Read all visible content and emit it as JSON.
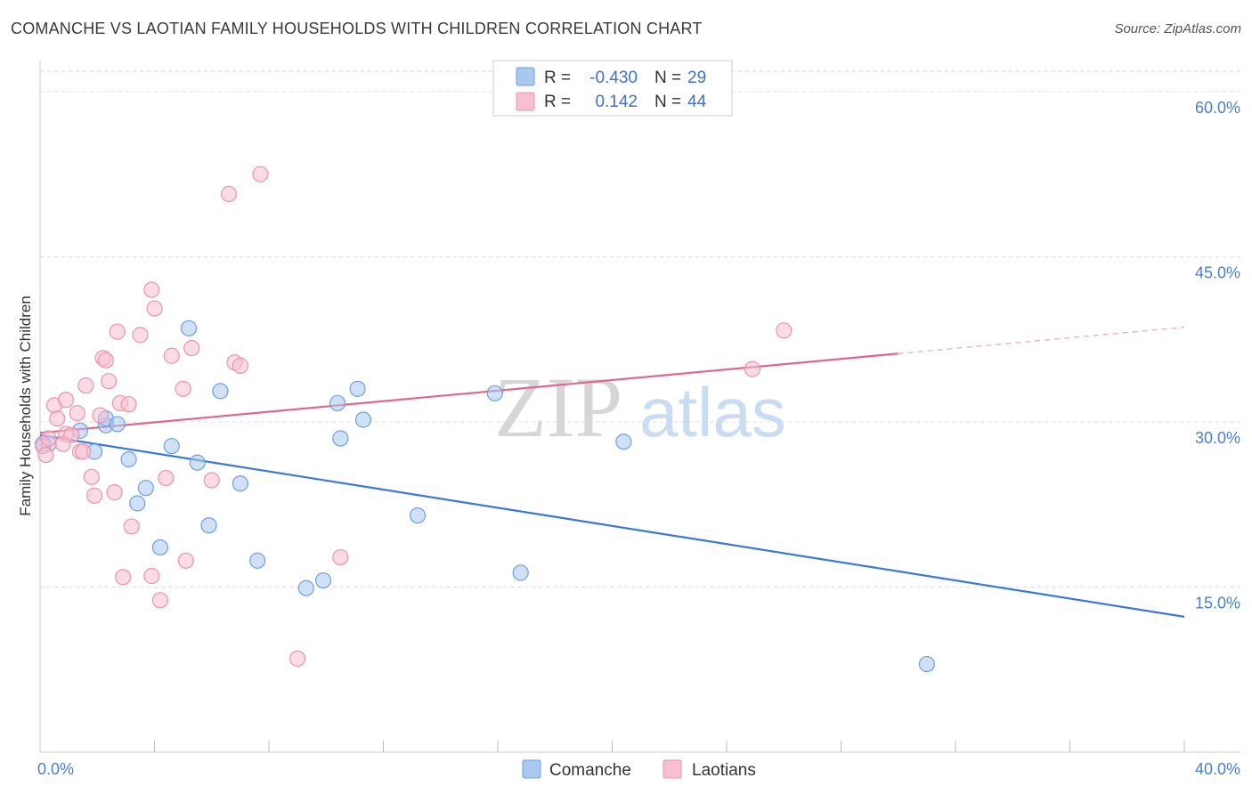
{
  "header": {
    "title": "COMANCHE VS LAOTIAN FAMILY HOUSEHOLDS WITH CHILDREN CORRELATION CHART",
    "source": "Source: ZipAtlas.com"
  },
  "watermark": {
    "part1": "ZIP",
    "part2": "atlas"
  },
  "colors": {
    "comanche_fill": "#a9c8f0",
    "comanche_stroke": "#6f9fde",
    "comanche_line": "#3a7ad4",
    "laotian_fill": "#f8bfd0",
    "laotian_stroke": "#ec93ae",
    "laotian_line": "#e0668e",
    "tick_label": "#4a7fd0",
    "grid": "#dddddd"
  },
  "stats_legend": {
    "r_label": "R =",
    "n_label": "N =",
    "rows": [
      {
        "series": "Comanche",
        "r": "-0.430",
        "n": "29"
      },
      {
        "series": "Laotians",
        "r": "0.142",
        "n": "44"
      }
    ]
  },
  "chart_data": {
    "type": "scatter",
    "title": "COMANCHE VS LAOTIAN FAMILY HOUSEHOLDS WITH CHILDREN CORRELATION CHART",
    "xlabel": "",
    "ylabel": "Family Households with Children",
    "xlim": [
      0,
      40
    ],
    "ylim": [
      0,
      62.5
    ],
    "x_tick_labels": [
      "0.0%",
      "40.0%"
    ],
    "y_ticks": [
      15,
      30,
      45,
      60
    ],
    "y_tick_labels": [
      "15.0%",
      "30.0%",
      "45.0%",
      "60.0%"
    ],
    "legend": [
      "Comanche",
      "Laotians"
    ],
    "series": [
      {
        "name": "Comanche",
        "points": [
          [
            0.3,
            28.0
          ],
          [
            1.4,
            29.2
          ],
          [
            1.9,
            27.3
          ],
          [
            2.3,
            29.7
          ],
          [
            2.3,
            30.3
          ],
          [
            2.7,
            29.8
          ],
          [
            3.1,
            26.6
          ],
          [
            3.4,
            22.6
          ],
          [
            3.7,
            24.0
          ],
          [
            4.2,
            18.6
          ],
          [
            4.6,
            27.8
          ],
          [
            5.2,
            38.5
          ],
          [
            5.5,
            26.3
          ],
          [
            5.9,
            20.6
          ],
          [
            6.3,
            32.8
          ],
          [
            7.0,
            24.4
          ],
          [
            7.6,
            17.4
          ],
          [
            9.3,
            14.9
          ],
          [
            9.9,
            15.6
          ],
          [
            10.4,
            31.7
          ],
          [
            10.5,
            28.5
          ],
          [
            11.1,
            33.0
          ],
          [
            11.3,
            30.2
          ],
          [
            13.2,
            21.5
          ],
          [
            15.9,
            32.6
          ],
          [
            16.8,
            16.3
          ],
          [
            20.4,
            28.2
          ],
          [
            31.0,
            8.0
          ],
          [
            0.1,
            28.0
          ]
        ],
        "trend": {
          "x": [
            0,
            40
          ],
          "y": [
            28.8,
            12.3
          ]
        }
      },
      {
        "name": "Laotians",
        "points": [
          [
            0.1,
            27.8
          ],
          [
            0.3,
            28.5
          ],
          [
            0.5,
            31.5
          ],
          [
            0.6,
            30.3
          ],
          [
            0.9,
            28.9
          ],
          [
            0.9,
            32.0
          ],
          [
            1.1,
            28.8
          ],
          [
            1.3,
            30.8
          ],
          [
            1.4,
            27.3
          ],
          [
            1.5,
            27.3
          ],
          [
            1.6,
            33.3
          ],
          [
            1.8,
            25.0
          ],
          [
            1.9,
            23.3
          ],
          [
            2.1,
            30.6
          ],
          [
            2.2,
            35.8
          ],
          [
            2.3,
            35.6
          ],
          [
            2.4,
            33.7
          ],
          [
            2.6,
            23.6
          ],
          [
            2.7,
            38.2
          ],
          [
            2.8,
            31.7
          ],
          [
            2.9,
            15.9
          ],
          [
            3.1,
            31.6
          ],
          [
            3.2,
            20.5
          ],
          [
            3.5,
            37.9
          ],
          [
            3.9,
            42.0
          ],
          [
            3.9,
            16.0
          ],
          [
            4.0,
            40.3
          ],
          [
            4.2,
            13.8
          ],
          [
            4.4,
            24.9
          ],
          [
            4.6,
            36.0
          ],
          [
            5.0,
            33.0
          ],
          [
            5.1,
            17.4
          ],
          [
            5.3,
            36.7
          ],
          [
            6.0,
            24.7
          ],
          [
            6.6,
            50.7
          ],
          [
            6.8,
            35.4
          ],
          [
            7.0,
            35.1
          ],
          [
            7.7,
            52.5
          ],
          [
            9.0,
            8.5
          ],
          [
            10.5,
            17.7
          ],
          [
            24.9,
            34.8
          ],
          [
            26.0,
            38.3
          ],
          [
            0.2,
            27.0
          ],
          [
            0.8,
            28.0
          ]
        ],
        "trend": {
          "x": [
            0,
            30
          ],
          "y": [
            29.0,
            36.2
          ]
        },
        "trend_dashed": {
          "x": [
            30,
            40
          ],
          "y": [
            36.2,
            38.6
          ]
        }
      }
    ]
  }
}
